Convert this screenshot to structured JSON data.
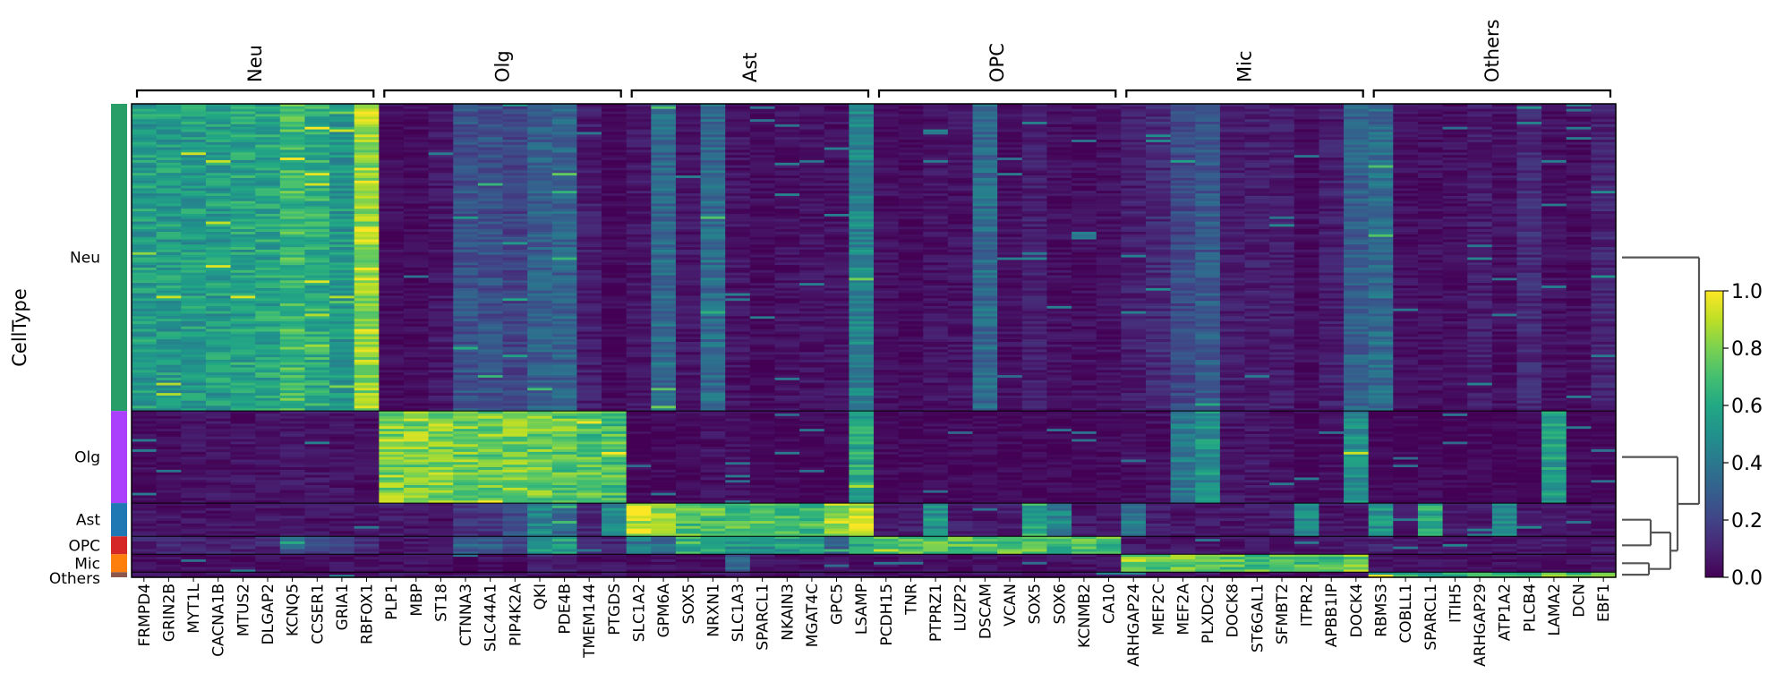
{
  "chart_data": {
    "type": "heatmap",
    "title": "",
    "ylabel": "CellType",
    "colorbar": {
      "colormap": "viridis",
      "vmin": 0.0,
      "vmax": 1.0,
      "ticks": [
        "0.0",
        "0.2",
        "0.4",
        "0.6",
        "0.8",
        "1.0"
      ]
    },
    "cell_types": [
      {
        "name": "Neu",
        "rows": 120,
        "color": "#279e68"
      },
      {
        "name": "Olg",
        "rows": 36,
        "color": "#aa40fc"
      },
      {
        "name": "Ast",
        "rows": 13,
        "color": "#1f77b4"
      },
      {
        "name": "OPC",
        "rows": 7,
        "color": "#d62728"
      },
      {
        "name": "Mic",
        "rows": 7,
        "color": "#ff7f0e"
      },
      {
        "name": "Others",
        "rows": 2,
        "color": "#8c564b"
      }
    ],
    "gene_groups": [
      {
        "name": "Neu",
        "genes": [
          "FRMPD4",
          "GRIN2B",
          "MYT1L",
          "CACNA1B",
          "MTUS2",
          "DLGAP2",
          "KCNQ5",
          "CCSER1",
          "GRIA1",
          "RBFOX1"
        ]
      },
      {
        "name": "Olg",
        "genes": [
          "PLP1",
          "MBP",
          "ST18",
          "CTNNA3",
          "SLC44A1",
          "PIP4K2A",
          "QKI",
          "PDE4B",
          "TMEM144",
          "PTGDS"
        ]
      },
      {
        "name": "Ast",
        "genes": [
          "SLC1A2",
          "GPM6A",
          "SOX5",
          "NRXN1",
          "SLC1A3",
          "SPARCL1",
          "NKAIN3",
          "MGAT4C",
          "GPC5",
          "LSAMP"
        ]
      },
      {
        "name": "OPC",
        "genes": [
          "PCDH15",
          "TNR",
          "PTPRZ1",
          "LUZP2",
          "DSCAM",
          "VCAN",
          "SOX5",
          "SOX6",
          "KCNMB2",
          "CA10"
        ]
      },
      {
        "name": "Mic",
        "genes": [
          "ARHGAP24",
          "MEF2C",
          "MEF2A",
          "PLXDC2",
          "DOCK8",
          "ST6GAL1",
          "SFMBT2",
          "ITPR2",
          "APBB1IP",
          "DOCK4"
        ]
      },
      {
        "name": "Others",
        "genes": [
          "RBMS3",
          "COBLL1",
          "SPARCL1",
          "ITIH5",
          "ARHGAP29",
          "ATP1A2",
          "PLCB4",
          "LAMA2",
          "DCN",
          "EBF1"
        ]
      }
    ],
    "mean_expression": {
      "Neu": [
        0.55,
        0.55,
        0.55,
        0.55,
        0.58,
        0.58,
        0.68,
        0.62,
        0.52,
        0.85,
        0.03,
        0.03,
        0.06,
        0.25,
        0.25,
        0.2,
        0.3,
        0.32,
        0.08,
        0.02,
        0.06,
        0.35,
        0.06,
        0.35,
        0.05,
        0.03,
        0.05,
        0.05,
        0.05,
        0.45,
        0.04,
        0.02,
        0.05,
        0.05,
        0.35,
        0.04,
        0.08,
        0.04,
        0.04,
        0.04,
        0.08,
        0.12,
        0.22,
        0.28,
        0.08,
        0.08,
        0.08,
        0.03,
        0.08,
        0.3,
        0.35,
        0.04,
        0.04,
        0.04,
        0.08,
        0.04,
        0.12,
        0.04,
        0.04,
        0.1
      ],
      "Olg": [
        0.03,
        0.03,
        0.05,
        0.05,
        0.05,
        0.05,
        0.06,
        0.06,
        0.05,
        0.04,
        0.82,
        0.8,
        0.82,
        0.78,
        0.78,
        0.8,
        0.78,
        0.75,
        0.72,
        0.7,
        0.02,
        0.02,
        0.02,
        0.05,
        0.05,
        0.02,
        0.02,
        0.02,
        0.02,
        0.6,
        0.02,
        0.02,
        0.02,
        0.02,
        0.02,
        0.02,
        0.02,
        0.02,
        0.02,
        0.02,
        0.04,
        0.04,
        0.4,
        0.5,
        0.06,
        0.06,
        0.05,
        0.02,
        0.04,
        0.48,
        0.02,
        0.02,
        0.02,
        0.02,
        0.02,
        0.02,
        0.02,
        0.55,
        0.02,
        0.02
      ],
      "Ast": [
        0.05,
        0.05,
        0.05,
        0.05,
        0.05,
        0.05,
        0.06,
        0.05,
        0.05,
        0.05,
        0.08,
        0.06,
        0.05,
        0.15,
        0.15,
        0.22,
        0.45,
        0.35,
        0.1,
        0.5,
        0.88,
        0.82,
        0.72,
        0.72,
        0.7,
        0.7,
        0.68,
        0.68,
        0.85,
        0.92,
        0.06,
        0.08,
        0.5,
        0.08,
        0.06,
        0.08,
        0.6,
        0.45,
        0.06,
        0.06,
        0.4,
        0.08,
        0.06,
        0.08,
        0.06,
        0.06,
        0.08,
        0.5,
        0.06,
        0.06,
        0.5,
        0.06,
        0.6,
        0.08,
        0.06,
        0.45,
        0.08,
        0.08,
        0.06,
        0.06
      ],
      "OPC": [
        0.1,
        0.1,
        0.1,
        0.1,
        0.1,
        0.1,
        0.3,
        0.2,
        0.2,
        0.15,
        0.06,
        0.06,
        0.06,
        0.3,
        0.3,
        0.2,
        0.55,
        0.55,
        0.1,
        0.1,
        0.4,
        0.35,
        0.65,
        0.65,
        0.55,
        0.5,
        0.55,
        0.55,
        0.3,
        0.65,
        0.78,
        0.72,
        0.75,
        0.75,
        0.72,
        0.72,
        0.78,
        0.7,
        0.7,
        0.7,
        0.06,
        0.06,
        0.06,
        0.06,
        0.06,
        0.06,
        0.06,
        0.06,
        0.06,
        0.06,
        0.1,
        0.06,
        0.06,
        0.06,
        0.06,
        0.06,
        0.06,
        0.06,
        0.06,
        0.06
      ],
      "Mic": [
        0.04,
        0.04,
        0.04,
        0.04,
        0.04,
        0.04,
        0.04,
        0.04,
        0.04,
        0.04,
        0.04,
        0.04,
        0.04,
        0.04,
        0.04,
        0.04,
        0.1,
        0.1,
        0.04,
        0.04,
        0.04,
        0.04,
        0.04,
        0.04,
        0.3,
        0.04,
        0.04,
        0.04,
        0.04,
        0.04,
        0.04,
        0.04,
        0.04,
        0.04,
        0.04,
        0.04,
        0.04,
        0.04,
        0.04,
        0.04,
        0.8,
        0.72,
        0.78,
        0.82,
        0.72,
        0.72,
        0.72,
        0.72,
        0.7,
        0.8,
        0.04,
        0.04,
        0.04,
        0.04,
        0.04,
        0.04,
        0.04,
        0.04,
        0.04,
        0.04
      ],
      "Others": [
        0.05,
        0.05,
        0.05,
        0.05,
        0.05,
        0.05,
        0.05,
        0.05,
        0.05,
        0.05,
        0.05,
        0.05,
        0.05,
        0.05,
        0.05,
        0.05,
        0.05,
        0.05,
        0.05,
        0.05,
        0.05,
        0.05,
        0.05,
        0.05,
        0.05,
        0.05,
        0.05,
        0.05,
        0.05,
        0.05,
        0.05,
        0.05,
        0.05,
        0.05,
        0.05,
        0.05,
        0.05,
        0.05,
        0.05,
        0.05,
        0.05,
        0.05,
        0.05,
        0.05,
        0.05,
        0.05,
        0.05,
        0.05,
        0.05,
        0.05,
        0.6,
        0.6,
        0.6,
        0.6,
        0.6,
        0.6,
        0.7,
        0.75,
        0.7,
        0.7
      ]
    },
    "dendrogram": {
      "leaf_order": [
        "Neu",
        "Olg",
        "Ast",
        "OPC",
        "Mic",
        "Others"
      ],
      "merges": [
        [
          "Mic",
          "Others"
        ],
        [
          "Ast",
          "OPC"
        ],
        [
          "Ast+OPC",
          "Mic+Others"
        ],
        [
          "Olg",
          "Ast+OPC+Mic+Others"
        ],
        [
          "Neu",
          "rest"
        ]
      ]
    }
  }
}
